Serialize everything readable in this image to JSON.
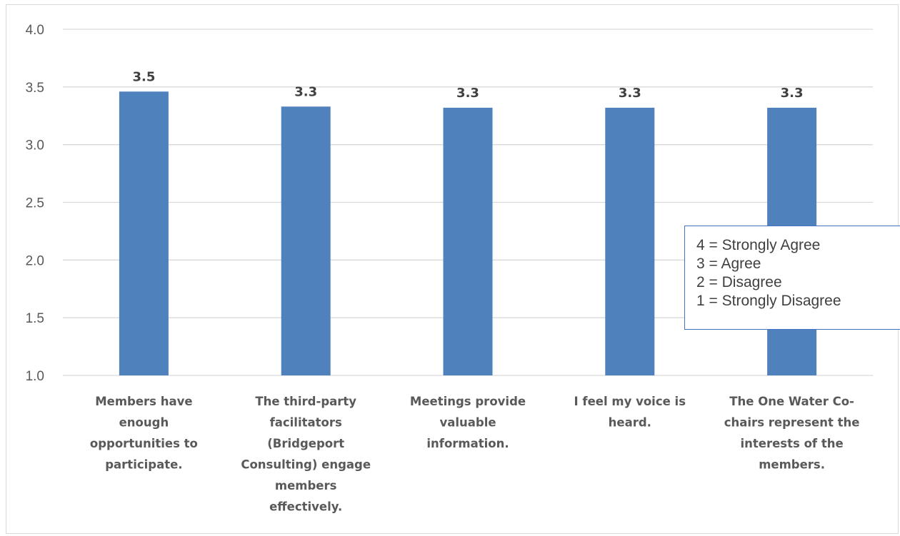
{
  "chart_data": {
    "type": "bar",
    "categories": [
      [
        "Members have",
        "enough",
        "opportunities to",
        "participate."
      ],
      [
        "The third-party",
        "facilitators",
        "(Bridgeport",
        "Consulting) engage",
        "members",
        "effectively."
      ],
      [
        "Meetings provide",
        "valuable",
        "information."
      ],
      [
        "I feel my voice is",
        "heard."
      ],
      [
        "The One Water Co-",
        "chairs represent the",
        "interests of the",
        "members."
      ]
    ],
    "values": [
      3.46,
      3.33,
      3.32,
      3.32,
      3.32
    ],
    "data_labels": [
      "3.5",
      "3.3",
      "3.3",
      "3.3",
      "3.3"
    ],
    "ylim": [
      1.0,
      4.0
    ],
    "y_ticks": [
      "1.0",
      "1.5",
      "2.0",
      "2.5",
      "3.0",
      "3.5",
      "4.0"
    ],
    "y_tick_values": [
      1.0,
      1.5,
      2.0,
      2.5,
      3.0,
      3.5,
      4.0
    ],
    "grid": true,
    "bar_color": "#4f81bd",
    "grid_color": "#d9d9d9",
    "legend_note": [
      "4 = Strongly Agree",
      "3 = Agree",
      "2 = Disagree",
      "1 = Strongly Disagree"
    ]
  }
}
